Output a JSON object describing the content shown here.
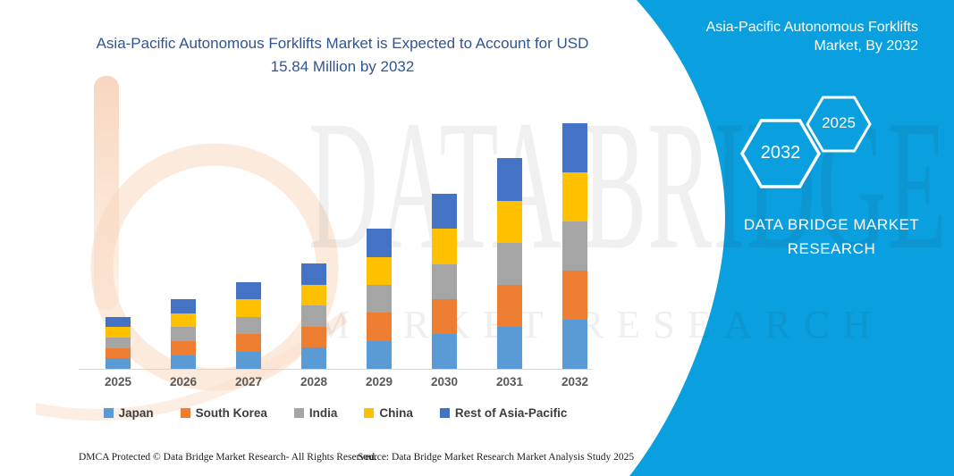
{
  "main_title": {
    "line1": "Asia-Pacific Autonomous Forklifts Market is Expected to Account for USD",
    "line2": "15.84 Million by 2032"
  },
  "chart_data": {
    "type": "bar",
    "stacked": true,
    "title": "Asia-Pacific Autonomous Forklifts Market is Expected to Account for USD 15.84 Million by 2032",
    "unit": "USD Million",
    "categories": [
      "2025",
      "2026",
      "2027",
      "2028",
      "2029",
      "2030",
      "2031",
      "2032"
    ],
    "series": [
      {
        "name": "Japan",
        "color": "#5B9BD5",
        "values": [
          0.67,
          0.89,
          1.12,
          1.36,
          1.81,
          2.25,
          2.72,
          3.17
        ]
      },
      {
        "name": "South Korea",
        "color": "#ED7D31",
        "values": [
          0.68,
          0.9,
          1.13,
          1.36,
          1.81,
          2.26,
          2.71,
          3.17
        ]
      },
      {
        "name": "India",
        "color": "#A5A5A5",
        "values": [
          0.67,
          0.89,
          1.12,
          1.36,
          1.8,
          2.25,
          2.72,
          3.17
        ]
      },
      {
        "name": "China",
        "color": "#FFC000",
        "values": [
          0.68,
          0.9,
          1.13,
          1.36,
          1.81,
          2.26,
          2.71,
          3.17
        ]
      },
      {
        "name": "Rest of Asia-Pacific",
        "color": "#4472C4",
        "values": [
          0.67,
          0.89,
          1.12,
          1.36,
          1.81,
          2.25,
          2.72,
          3.16
        ]
      }
    ],
    "totals_by_year": [
      3.37,
      4.47,
      5.62,
      6.8,
      9.04,
      11.27,
      13.58,
      15.84
    ],
    "ylim": [
      0,
      15.84
    ],
    "grid": false,
    "y_axis_visible": false,
    "legend_position": "bottom"
  },
  "side_panel": {
    "title_line1": "Asia-Pacific Autonomous Forklifts",
    "title_line2": "Market, By 2032",
    "hexagon_back_label": "2032",
    "hexagon_front_label": "2025",
    "brand_line1": "DATA BRIDGE MARKET",
    "brand_line2": "RESEARCH"
  },
  "watermark": {
    "line1": "DATA BRIDGE",
    "line2": "MARKET RESEARCH"
  },
  "footer": {
    "dmca": "DMCA Protected © Data Bridge Market Research-  All Rights Reserved.",
    "source": "Source: Data Bridge Market Research  Market Analysis Study 2025"
  },
  "colors": {
    "title_text": "#2F5496",
    "axis_labels": "#595959",
    "panel_background": "#0A9FDE",
    "axis_line": "#D6D6D6"
  }
}
